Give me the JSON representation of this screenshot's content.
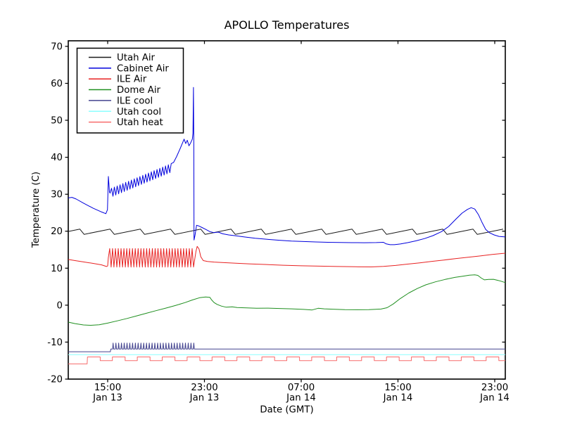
{
  "figure": {
    "background": "#ffffff",
    "frame_color": "#000000"
  },
  "chart_data": {
    "type": "line",
    "title": "APOLLO Temperatures",
    "xlabel": "Date (GMT)",
    "ylabel": "Temperature (C)",
    "grid": false,
    "legend_position": "upper-left",
    "xlim_hours": [
      11.742,
      47.873
    ],
    "ylim": [
      -20,
      71.5
    ],
    "y_ticks": [
      -20,
      -10,
      0,
      10,
      20,
      30,
      40,
      50,
      60,
      70
    ],
    "x_ticks": [
      {
        "hour": 15,
        "time": "15:00",
        "date": "Jan 13"
      },
      {
        "hour": 23,
        "time": "23:00",
        "date": "Jan 13"
      },
      {
        "hour": 31,
        "time": "07:00",
        "date": "Jan 14"
      },
      {
        "hour": 39,
        "time": "15:00",
        "date": "Jan 14"
      },
      {
        "hour": 47,
        "time": "23:00",
        "date": "Jan 14"
      }
    ],
    "series": [
      {
        "name": "Utah Air",
        "color": "#1a1a1a",
        "segments": [
          {
            "type": "saw",
            "from": 11.742,
            "to": 47.873,
            "lo": 19.15,
            "hi": 20.55,
            "period": 2.5,
            "firstPeak": 12.7,
            "fall": 0.35
          }
        ]
      },
      {
        "name": "Cabinet Air",
        "color": "#0000dd",
        "segments": [
          {
            "type": "points",
            "pts": [
              [
                11.742,
                29.0
              ],
              [
                12.05,
                29.15
              ],
              [
                12.4,
                28.7
              ],
              [
                13.0,
                27.6
              ],
              [
                13.8,
                26.2
              ],
              [
                14.5,
                25.2
              ],
              [
                14.85,
                24.75
              ],
              [
                14.98,
                25.8
              ],
              [
                15.06,
                34.8
              ],
              [
                15.15,
                30.6
              ]
            ]
          },
          {
            "type": "osc",
            "from": 15.2,
            "to": 20.3,
            "b0": 30.3,
            "b1": 37.2,
            "amp": 1.15,
            "period": 0.235,
            "firstDir": 1
          },
          {
            "type": "points",
            "pts": [
              [
                20.45,
                38.6
              ],
              [
                20.7,
                40.2
              ],
              [
                21.0,
                42.4
              ],
              [
                21.32,
                44.9
              ],
              [
                21.45,
                43.7
              ],
              [
                21.58,
                44.6
              ],
              [
                21.72,
                43.1
              ],
              [
                21.85,
                43.8
              ],
              [
                22.0,
                44.9
              ],
              [
                22.05,
                46.5
              ],
              [
                22.09,
                58.9
              ],
              [
                22.12,
                44.0
              ],
              [
                22.14,
                17.6
              ],
              [
                22.22,
                18.9
              ],
              [
                22.35,
                21.6
              ],
              [
                22.55,
                21.4
              ],
              [
                22.8,
                21.0
              ],
              [
                23.1,
                20.5
              ],
              [
                23.45,
                19.9
              ],
              [
                23.8,
                19.6
              ],
              [
                24.15,
                19.75
              ],
              [
                24.5,
                19.3
              ],
              [
                25.0,
                19.0
              ],
              [
                25.6,
                18.75
              ],
              [
                26.3,
                18.45
              ],
              [
                27.2,
                18.1
              ],
              [
                28.2,
                17.8
              ],
              [
                29.2,
                17.55
              ],
              [
                30.2,
                17.35
              ],
              [
                31.2,
                17.2
              ],
              [
                32.2,
                17.1
              ],
              [
                33.2,
                17.0
              ],
              [
                34.2,
                16.95
              ],
              [
                35.2,
                16.9
              ],
              [
                36.2,
                16.88
              ],
              [
                37.2,
                16.92
              ],
              [
                37.8,
                17.0
              ],
              [
                38.0,
                16.6
              ],
              [
                38.35,
                16.35
              ],
              [
                38.7,
                16.35
              ],
              [
                39.2,
                16.55
              ],
              [
                39.8,
                16.9
              ],
              [
                40.5,
                17.4
              ],
              [
                41.2,
                18.0
              ],
              [
                41.9,
                18.8
              ],
              [
                42.6,
                19.9
              ],
              [
                43.2,
                21.3
              ],
              [
                43.8,
                23.3
              ],
              [
                44.3,
                24.9
              ],
              [
                44.75,
                25.9
              ],
              [
                45.05,
                26.35
              ],
              [
                45.35,
                26.0
              ],
              [
                45.65,
                24.5
              ],
              [
                45.95,
                22.4
              ],
              [
                46.25,
                20.5
              ],
              [
                46.55,
                19.6
              ],
              [
                46.95,
                19.0
              ],
              [
                47.35,
                18.6
              ],
              [
                47.873,
                18.45
              ]
            ]
          }
        ]
      },
      {
        "name": "ILE Air",
        "color": "#e82222",
        "segments": [
          {
            "type": "points",
            "pts": [
              [
                11.742,
                12.35
              ],
              [
                12.3,
                12.05
              ],
              [
                13.0,
                11.7
              ],
              [
                13.8,
                11.3
              ],
              [
                14.5,
                10.9
              ],
              [
                14.9,
                10.45
              ],
              [
                15.0,
                10.6
              ]
            ]
          },
          {
            "type": "osc",
            "from": 15.05,
            "to": 22.2,
            "b0": 12.8,
            "b1": 12.8,
            "amp": 2.5,
            "period": 0.235,
            "firstDir": 1
          },
          {
            "type": "points",
            "pts": [
              [
                22.3,
                14.6
              ],
              [
                22.4,
                15.9
              ],
              [
                22.55,
                15.2
              ],
              [
                22.7,
                13.1
              ],
              [
                22.9,
                12.05
              ],
              [
                23.25,
                11.8
              ],
              [
                23.8,
                11.65
              ],
              [
                24.6,
                11.5
              ],
              [
                25.6,
                11.35
              ],
              [
                26.8,
                11.15
              ],
              [
                28.0,
                11.0
              ],
              [
                29.5,
                10.8
              ],
              [
                31.0,
                10.65
              ],
              [
                32.5,
                10.55
              ],
              [
                34.0,
                10.45
              ],
              [
                35.5,
                10.38
              ],
              [
                36.8,
                10.35
              ],
              [
                37.8,
                10.5
              ],
              [
                38.8,
                10.75
              ],
              [
                39.8,
                11.1
              ],
              [
                40.8,
                11.45
              ],
              [
                41.8,
                11.85
              ],
              [
                42.8,
                12.2
              ],
              [
                43.8,
                12.6
              ],
              [
                44.8,
                12.95
              ],
              [
                45.8,
                13.3
              ],
              [
                46.8,
                13.7
              ],
              [
                47.873,
                14.05
              ]
            ]
          }
        ]
      },
      {
        "name": "Dome Air",
        "color": "#1f8f1f",
        "segments": [
          {
            "type": "points",
            "pts": [
              [
                11.742,
                -4.6
              ],
              [
                12.3,
                -5.0
              ],
              [
                13.0,
                -5.35
              ],
              [
                13.6,
                -5.45
              ],
              [
                14.3,
                -5.3
              ],
              [
                15.0,
                -4.85
              ],
              [
                15.8,
                -4.25
              ],
              [
                16.6,
                -3.6
              ],
              [
                17.4,
                -2.9
              ],
              [
                18.2,
                -2.2
              ],
              [
                19.0,
                -1.5
              ],
              [
                19.8,
                -0.8
              ],
              [
                20.6,
                -0.1
              ],
              [
                21.4,
                0.7
              ],
              [
                22.0,
                1.4
              ],
              [
                22.6,
                2.0
              ],
              [
                23.1,
                2.2
              ],
              [
                23.45,
                2.1
              ],
              [
                23.6,
                1.4
              ],
              [
                23.8,
                0.7
              ],
              [
                24.05,
                0.2
              ],
              [
                24.4,
                -0.25
              ],
              [
                24.8,
                -0.55
              ],
              [
                25.3,
                -0.45
              ],
              [
                25.7,
                -0.65
              ],
              [
                26.5,
                -0.75
              ],
              [
                27.3,
                -0.85
              ],
              [
                28.2,
                -0.8
              ],
              [
                29.2,
                -0.9
              ],
              [
                30.2,
                -1.0
              ],
              [
                31.2,
                -1.15
              ],
              [
                31.9,
                -1.3
              ],
              [
                32.4,
                -0.85
              ],
              [
                32.9,
                -1.0
              ],
              [
                33.6,
                -1.1
              ],
              [
                34.6,
                -1.2
              ],
              [
                35.6,
                -1.25
              ],
              [
                36.6,
                -1.2
              ],
              [
                37.6,
                -1.05
              ],
              [
                38.1,
                -0.7
              ],
              [
                38.6,
                0.3
              ],
              [
                39.2,
                1.8
              ],
              [
                39.9,
                3.3
              ],
              [
                40.6,
                4.5
              ],
              [
                41.3,
                5.5
              ],
              [
                42.1,
                6.3
              ],
              [
                42.9,
                6.95
              ],
              [
                43.7,
                7.5
              ],
              [
                44.4,
                7.85
              ],
              [
                44.9,
                8.1
              ],
              [
                45.35,
                8.2
              ],
              [
                45.6,
                8.05
              ],
              [
                45.9,
                7.3
              ],
              [
                46.15,
                6.85
              ],
              [
                46.5,
                6.95
              ],
              [
                46.9,
                7.0
              ],
              [
                47.2,
                6.75
              ],
              [
                47.5,
                6.5
              ],
              [
                47.873,
                6.1
              ]
            ]
          }
        ]
      },
      {
        "name": "ILE cool",
        "color": "#43438f",
        "segments": [
          {
            "type": "points",
            "pts": [
              [
                11.742,
                -12.6
              ],
              [
                15.22,
                -12.6
              ],
              [
                15.26,
                -11.85
              ],
              [
                15.38,
                -11.85
              ]
            ]
          },
          {
            "type": "spikes",
            "from": 15.45,
            "to": 22.15,
            "base": -11.85,
            "peak": -10.25,
            "period": 0.23,
            "width": 0.09
          },
          {
            "type": "points",
            "pts": [
              [
                22.2,
                -11.85
              ],
              [
                47.873,
                -11.85
              ]
            ]
          }
        ]
      },
      {
        "name": "Utah cool",
        "color": "#8cffff",
        "segments": [
          {
            "type": "points",
            "pts": [
              [
                11.742,
                -13.4
              ],
              [
                47.873,
                -13.4
              ]
            ]
          }
        ]
      },
      {
        "name": "Utah heat",
        "color": "#f76b6b",
        "segments": [
          {
            "type": "points",
            "pts": [
              [
                11.742,
                -15.9
              ],
              [
                13.3,
                -15.9
              ]
            ]
          },
          {
            "type": "square",
            "from": 13.33,
            "to": 47.873,
            "hi": -14.0,
            "lo": -15.0,
            "period": 2.06,
            "duty": 0.51
          }
        ]
      }
    ]
  }
}
